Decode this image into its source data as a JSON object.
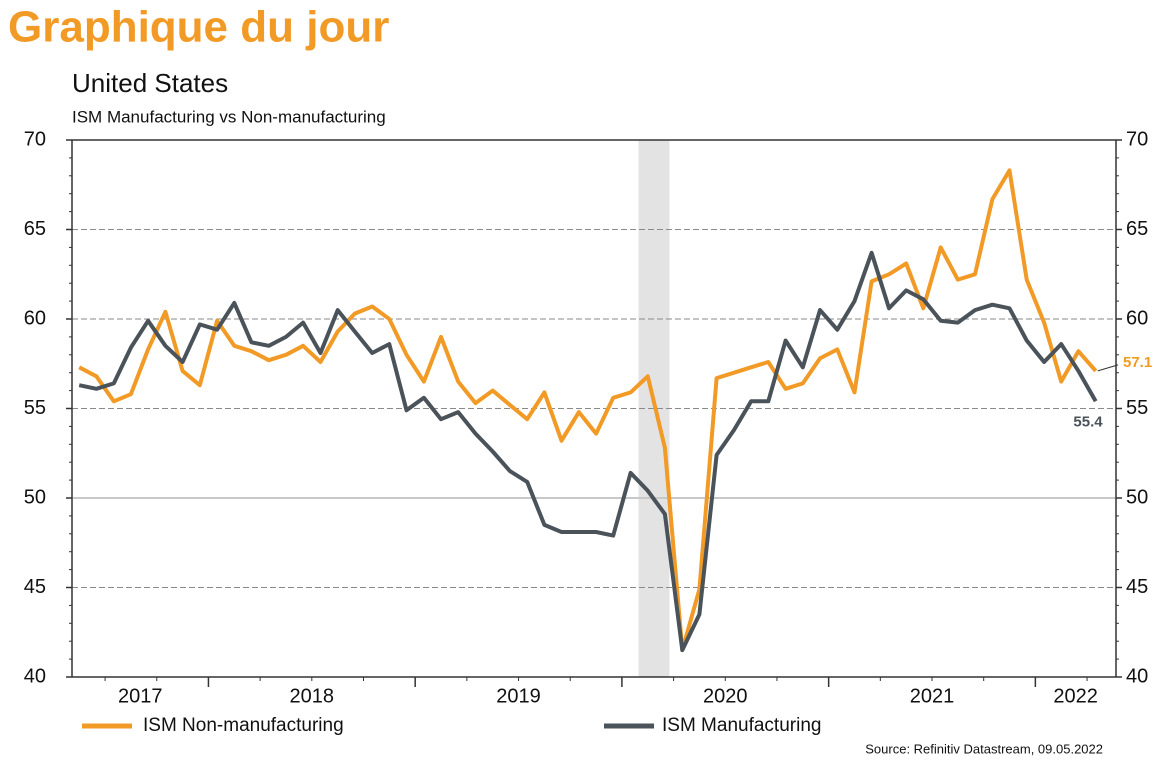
{
  "chart_data": {
    "type": "line",
    "header": "Graphique du jour",
    "title": "United States",
    "subtitle": "ISM Manufacturing vs Non-manufacturing",
    "source": "Source: Refinitiv Datastream, 09.05.2022",
    "x": [
      2017.375,
      2017.458,
      2017.542,
      2017.625,
      2017.708,
      2017.792,
      2017.875,
      2017.958,
      2018.042,
      2018.125,
      2018.208,
      2018.292,
      2018.375,
      2018.458,
      2018.542,
      2018.625,
      2018.708,
      2018.792,
      2018.875,
      2018.958,
      2019.042,
      2019.125,
      2019.208,
      2019.292,
      2019.375,
      2019.458,
      2019.542,
      2019.625,
      2019.708,
      2019.792,
      2019.875,
      2019.958,
      2020.042,
      2020.125,
      2020.208,
      2020.292,
      2020.375,
      2020.458,
      2020.542,
      2020.625,
      2020.708,
      2020.792,
      2020.875,
      2020.958,
      2021.042,
      2021.125,
      2021.208,
      2021.292,
      2021.375,
      2021.458,
      2021.542,
      2021.625,
      2021.708,
      2021.792,
      2021.875,
      2021.958,
      2022.042,
      2022.125,
      2022.208,
      2022.292
    ],
    "series": [
      {
        "name": "ISM Non-manufacturing",
        "color": "#f29a26",
        "values": [
          57.3,
          56.8,
          55.4,
          55.8,
          58.3,
          60.4,
          57.1,
          56.3,
          59.9,
          58.5,
          58.2,
          57.7,
          58.0,
          58.5,
          57.6,
          59.3,
          60.3,
          60.7,
          60.0,
          58.0,
          56.5,
          59.0,
          56.5,
          55.3,
          56.0,
          55.2,
          54.4,
          55.9,
          53.2,
          54.8,
          53.6,
          55.6,
          55.9,
          56.8,
          52.8,
          41.5,
          44.9,
          56.7,
          57.0,
          57.3,
          57.6,
          56.1,
          56.4,
          57.8,
          58.3,
          55.9,
          62.1,
          62.5,
          63.1,
          60.6,
          64.0,
          62.2,
          62.5,
          66.7,
          68.3,
          62.2,
          59.8,
          56.5,
          58.2,
          57.1
        ]
      },
      {
        "name": "ISM Manufacturing",
        "color": "#4b535a",
        "values": [
          56.3,
          56.1,
          56.4,
          58.4,
          59.9,
          58.5,
          57.6,
          59.7,
          59.4,
          60.9,
          58.7,
          58.5,
          59.0,
          59.8,
          58.1,
          60.5,
          59.3,
          58.1,
          58.6,
          54.9,
          55.6,
          54.4,
          54.8,
          53.6,
          52.6,
          51.5,
          50.9,
          48.5,
          48.1,
          48.1,
          48.1,
          47.9,
          51.4,
          50.4,
          49.1,
          41.5,
          43.5,
          52.4,
          53.8,
          55.4,
          55.4,
          58.8,
          57.3,
          60.5,
          59.4,
          61.0,
          63.7,
          60.6,
          61.6,
          61.1,
          59.9,
          59.8,
          60.5,
          60.8,
          60.6,
          58.8,
          57.6,
          58.6,
          57.1,
          55.4
        ]
      }
    ],
    "xlim": [
      2017.34,
      2022.39
    ],
    "xticks": [
      2017,
      2018,
      2019,
      2020,
      2021,
      2022
    ],
    "ylim": [
      40,
      70
    ],
    "yticks": [
      40,
      45,
      50,
      55,
      60,
      65,
      70
    ],
    "y2lim": [
      40,
      70
    ],
    "y2ticks": [
      40,
      45,
      50,
      55,
      60,
      65,
      70
    ],
    "shaded": [
      2020.08,
      2020.23
    ],
    "grid": true
  }
}
